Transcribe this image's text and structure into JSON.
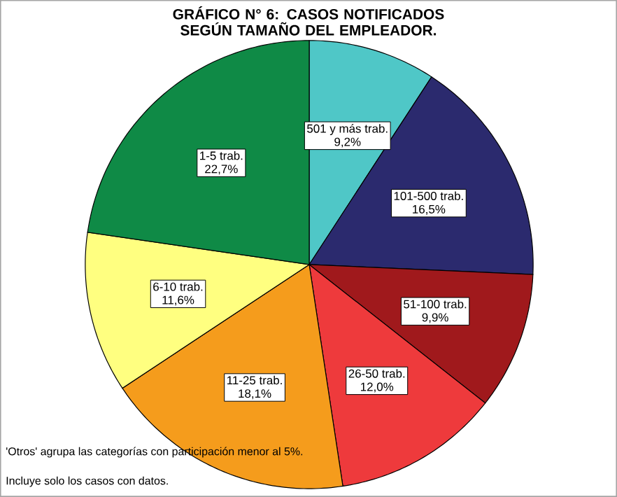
{
  "chart_data": {
    "type": "pie",
    "title": "GRÁFICO N° 6: CASOS NOTIFICADOS SEGÚN TAMAÑO DEL EMPLEADOR.",
    "categories": [
      "501 y más trab.",
      "101-500 trab.",
      "51-100 trab.",
      "26-50 trab.",
      "11-25 trab.",
      "6-10 trab.",
      "1-5 trab."
    ],
    "values": [
      9.2,
      16.5,
      9.9,
      12.0,
      18.1,
      11.6,
      22.7
    ],
    "value_labels": [
      "9,2%",
      "16,5%",
      "9,9%",
      "12,0%",
      "18,1%",
      "11,6%",
      "22,7%"
    ],
    "colors": [
      "#4fc7c7",
      "#2b2a6e",
      "#a0191c",
      "#ee3a3c",
      "#f59c1c",
      "#ffff80",
      "#0f8a46"
    ],
    "annotations": [
      "'Otros' agrupa las categorías con participación menor al 5%.",
      "Incluye solo los casos con datos."
    ]
  }
}
